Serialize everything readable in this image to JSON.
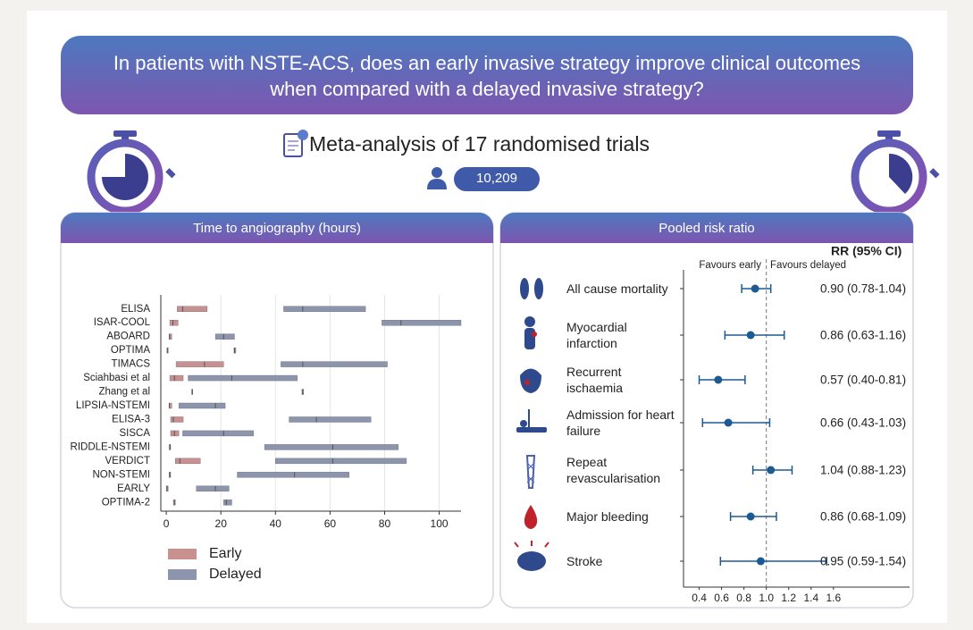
{
  "question": "In patients with NSTE-ACS, does an early invasive strategy improve clinical outcomes when compared with a delayed invasive strategy?",
  "subtitle": "Meta-analysis of 17 randomised trials",
  "patients": "10,209",
  "chart_data": [
    {
      "type": "range-bar",
      "title": "Time to angiography (hours)",
      "categories": [
        "ELISA",
        "ISAR-COOL",
        "ABOARD",
        "OPTIMA",
        "TIMACS",
        "Sciahbasi et al",
        "Zhang et al",
        "LIPSIA-NSTEMI",
        "ELISA-3",
        "SISCA",
        "RIDDLE-NSTEMI",
        "VERDICT",
        "NON-STEMI",
        "EARLY",
        "OPTIMA-2"
      ],
      "series": [
        {
          "name": "Early",
          "color": "#c99090",
          "low": [
            4,
            1.3,
            1,
            0.2,
            3.6,
            1.3,
            9.3,
            1,
            1.6,
            1.6,
            1,
            3.3,
            1,
            0,
            2.6
          ],
          "median": [
            6,
            2.4,
            1.2,
            0.5,
            14,
            3,
            9.5,
            1.1,
            2.6,
            3,
            1.4,
            5,
            1.3,
            0.3,
            3
          ],
          "high": [
            15,
            4.3,
            2,
            0.7,
            21,
            6.2,
            9.7,
            2,
            6.2,
            4.6,
            1.6,
            12.5,
            1.6,
            0.7,
            3.3
          ]
        },
        {
          "name": "Delayed",
          "color": "#8d95ad",
          "low": [
            43,
            79,
            18,
            24.8,
            42,
            8,
            49.7,
            4.6,
            45,
            6,
            36,
            40,
            26,
            11,
            21
          ],
          "median": [
            50,
            86,
            21,
            25,
            50,
            24,
            50,
            18,
            55,
            21,
            61,
            61,
            47,
            18,
            22
          ],
          "high": [
            73,
            108,
            25,
            25.5,
            81,
            48,
            50.3,
            21.6,
            75,
            32,
            85,
            88,
            67,
            23,
            24
          ]
        }
      ],
      "xlim": [
        -2,
        108
      ],
      "xticks": [
        0,
        20,
        40,
        60,
        80,
        100
      ],
      "grid": true,
      "legend": "bottom-left"
    },
    {
      "type": "forest",
      "title": "Pooled risk ratio",
      "header": "RR (95% CI)",
      "annotations": [
        "Favours early",
        "Favours delayed"
      ],
      "categories": [
        "All cause mortality",
        "Myocardial infarction",
        "Recurrent ischaemia",
        "Admission for heart failure",
        "Repeat revascularisation",
        "Major bleeding",
        "Stroke"
      ],
      "values": [
        0.9,
        0.86,
        0.57,
        0.66,
        1.04,
        0.86,
        0.95
      ],
      "low": [
        0.78,
        0.63,
        0.4,
        0.43,
        0.88,
        0.68,
        0.59
      ],
      "high": [
        1.04,
        1.16,
        0.81,
        1.03,
        1.23,
        1.09,
        1.54
      ],
      "value_labels": [
        "0.90 (0.78-1.04)",
        "0.86 (0.63-1.16)",
        "0.57 (0.40-0.81)",
        "0.66 (0.43-1.03)",
        "1.04 (0.88-1.23)",
        "0.86 (0.68-1.09)",
        "0.95 (0.59-1.54)"
      ],
      "color": "#1c5a96",
      "reference": 1,
      "xlim": [
        0.26,
        2.28
      ],
      "xticks": [
        0.4,
        0.6,
        0.8,
        {
          "value": 1,
          "label": "1.0"
        },
        1.2,
        1.4,
        1.6
      ]
    }
  ]
}
